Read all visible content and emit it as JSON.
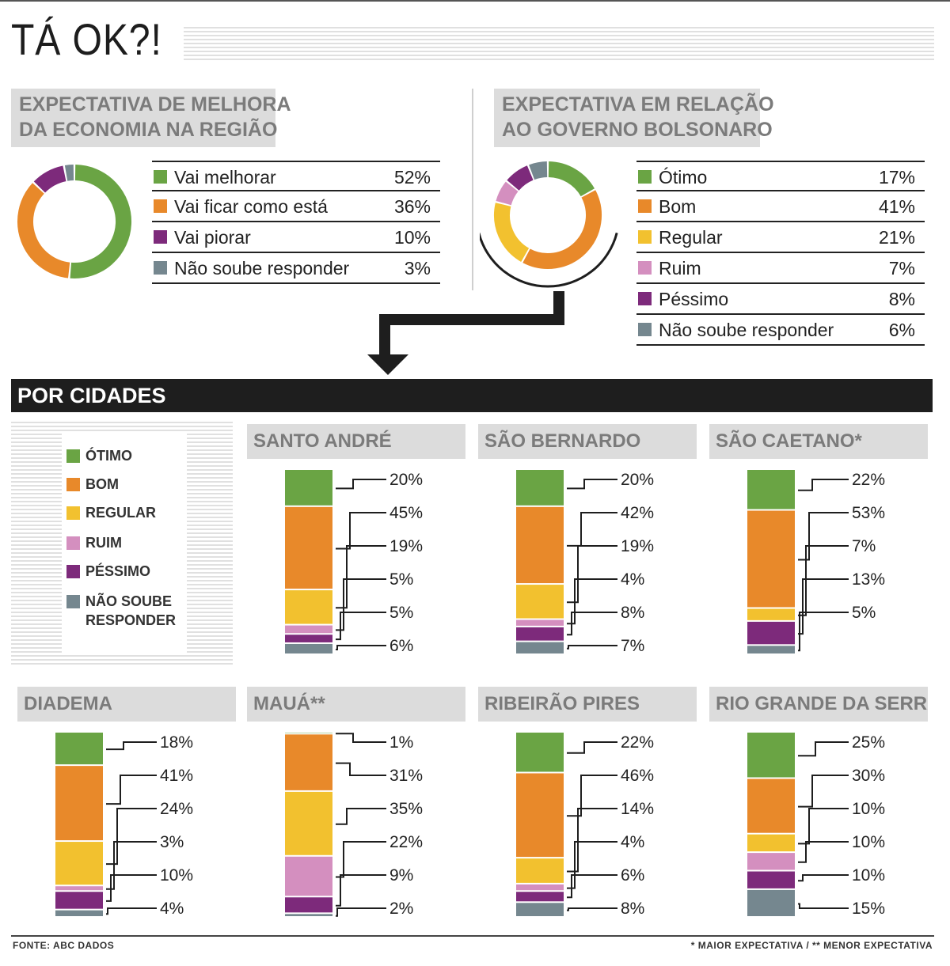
{
  "title": "TÁ OK?!",
  "colors": {
    "otimo": "#6aa444",
    "bom": "#e8892a",
    "regular": "#f2c12f",
    "ruim": "#d48fbf",
    "pessimo": "#7d2a7b",
    "nao_soube": "#75878f",
    "economy_pos": "#6aa444",
    "economy_same": "#e8892a",
    "economy_neg": "#7d2a7b",
    "economy_na": "#75878f"
  },
  "economy": {
    "title_line1": "EXPECTATIVA DE MELHORA",
    "title_line2": "DA ECONOMIA NA REGIÃO",
    "items": [
      {
        "label": "Vai melhorar",
        "value_text": "52%"
      },
      {
        "label": "Vai ficar como está",
        "value_text": "36%"
      },
      {
        "label": "Vai piorar",
        "value_text": "10%"
      },
      {
        "label": "Não soube responder",
        "value_text": "3%"
      }
    ]
  },
  "government": {
    "title_line1": "EXPECTATIVA EM RELAÇÃO",
    "title_line2": "AO GOVERNO BOLSONARO",
    "items": [
      {
        "label": "Ótimo",
        "value_text": "17%"
      },
      {
        "label": "Bom",
        "value_text": "41%"
      },
      {
        "label": "Regular",
        "value_text": "21%"
      },
      {
        "label": "Ruim",
        "value_text": "7%"
      },
      {
        "label": "Péssimo",
        "value_text": "8%"
      },
      {
        "label": "Não soube responder",
        "value_text": "6%"
      }
    ]
  },
  "cities_section": {
    "label": "POR CIDADES",
    "legend": [
      "ÓTIMO",
      "BOM",
      "REGULAR",
      "RUIM",
      "PÉSSIMO",
      "NÃO SOUBE",
      "RESPONDER"
    ]
  },
  "footer": {
    "source": "FONTE: ABC DADOS",
    "note": "* MAIOR EXPECTATIVA / ** MENOR EXPECTATIVA"
  },
  "chart_data": [
    {
      "type": "pie",
      "categories": [
        "Vai melhorar",
        "Vai ficar como está",
        "Vai piorar",
        "Não soube responder"
      ],
      "values": [
        52,
        36,
        10,
        3
      ]
    },
    {
      "type": "pie",
      "categories": [
        "Ótimo",
        "Bom",
        "Regular",
        "Ruim",
        "Péssimo",
        "Não soube responder"
      ],
      "values": [
        17,
        41,
        21,
        7,
        8,
        6
      ]
    },
    {
      "type": "bar",
      "stacked": true,
      "categories": [
        "ÓTIMO",
        "BOM",
        "REGULAR",
        "RUIM",
        "PÉSSIMO",
        "NÃO SOUBE RESPONDER"
      ],
      "cities": [
        {
          "name": "SANTO ANDRÉ",
          "values": [
            20,
            45,
            19,
            5,
            5,
            6
          ]
        },
        {
          "name": "SÃO BERNARDO",
          "values": [
            20,
            42,
            19,
            4,
            8,
            7
          ]
        },
        {
          "name": "SÃO CAETANO*",
          "values": [
            22,
            53,
            7,
            0,
            13,
            5
          ]
        },
        {
          "name": "DIADEMA",
          "values": [
            18,
            41,
            24,
            3,
            10,
            4
          ]
        },
        {
          "name": "MAUÁ**",
          "values": [
            1,
            31,
            35,
            22,
            9,
            2
          ]
        },
        {
          "name": "RIBEIRÃO PIRES",
          "values": [
            22,
            46,
            14,
            4,
            6,
            8
          ]
        },
        {
          "name": "RIO GRANDE DA SERRA",
          "values": [
            25,
            30,
            10,
            10,
            10,
            15
          ]
        }
      ]
    }
  ]
}
